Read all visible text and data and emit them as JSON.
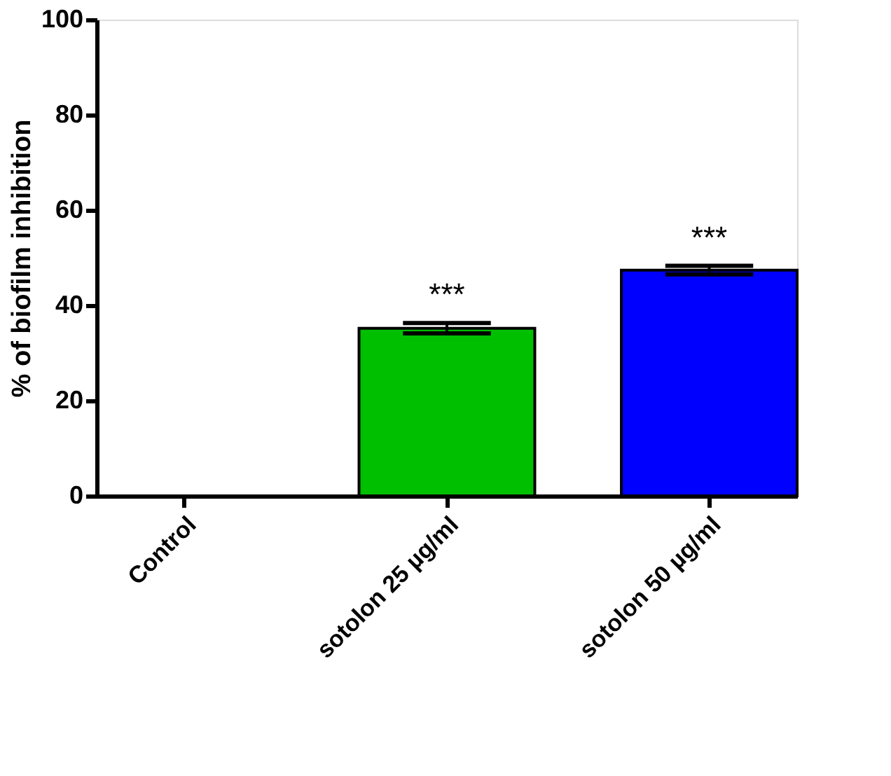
{
  "chart_data": {
    "type": "bar",
    "ylabel": "% of biofilm inhibition",
    "categories": [
      "Control",
      "sotolon 25 µg/ml",
      "sotolon 50 µg/ml"
    ],
    "values": [
      0,
      35.2,
      47.4
    ],
    "errors": [
      null,
      1.1,
      0.9
    ],
    "colors": [
      "#000000",
      "#00bf00",
      "#0000ff"
    ],
    "ylim": [
      0,
      100
    ],
    "yticks": [
      0,
      20,
      40,
      60,
      80,
      100
    ],
    "grid": false,
    "annotations": [
      "***",
      "***"
    ]
  }
}
